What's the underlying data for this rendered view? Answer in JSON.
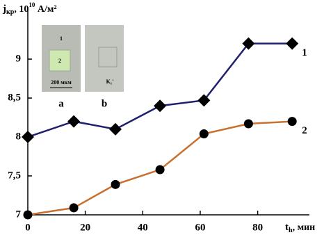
{
  "chart_data": {
    "type": "line",
    "y_label": [
      "j",
      "кр",
      ", 10",
      "10",
      " А/м²"
    ],
    "x_label": [
      "t",
      "h",
      ", мин"
    ],
    "xlim": [
      0,
      98
    ],
    "xticks": [
      0,
      20,
      40,
      60,
      80
    ],
    "ylim": [
      7,
      9.67
    ],
    "yticks": [
      7,
      {
        "value": 7.5,
        "label": "7,5"
      },
      8,
      {
        "value": 8.5,
        "label": "8,5"
      },
      9
    ],
    "x": [
      0,
      16,
      30.5,
      46,
      61.3,
      76.8,
      92
    ],
    "series": [
      {
        "name": "1",
        "color": "#1f1f6e",
        "marker": "diamond",
        "marker_color": "#000000",
        "values": [
          8.0,
          8.2,
          8.1,
          8.4,
          8.47,
          9.2,
          9.2
        ]
      },
      {
        "name": "2",
        "color": "#c8702f",
        "marker": "circle",
        "marker_color": "#000000",
        "values": [
          7.0,
          7.09,
          7.39,
          7.58,
          8.04,
          8.17,
          8.2
        ]
      }
    ],
    "insets": [
      {
        "label": "a",
        "texts": [
          "1",
          "2",
          "200 мкм"
        ]
      },
      {
        "label": "b",
        "texts": [
          "K₁'"
        ]
      }
    ]
  }
}
